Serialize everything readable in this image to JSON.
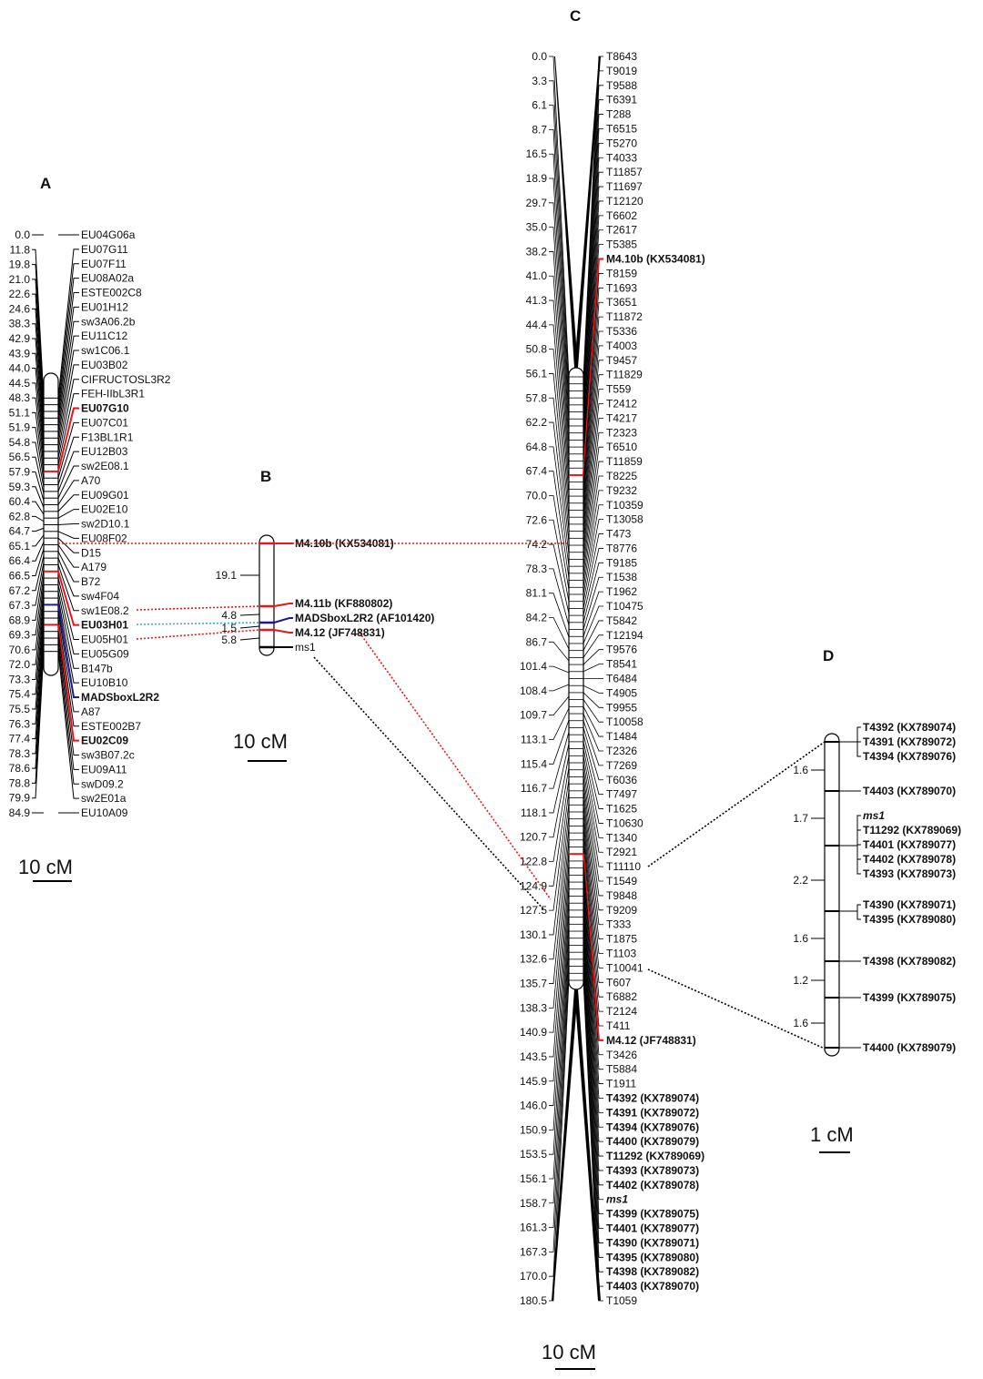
{
  "panels": {
    "A": "A",
    "B": "B",
    "C": "C",
    "D": "D"
  },
  "colors": {
    "red": "#e8161b",
    "blue": "#1c1a8c",
    "black": "#000000",
    "link_blue": "#4aa6d9"
  },
  "scale_labels": {
    "a": "10 cM",
    "b": "10 cM",
    "c": "10 cM",
    "d": "1 cM"
  },
  "lg_a": {
    "positions": [
      "0.0",
      "11.8",
      "19.8",
      "21.0",
      "22.6",
      "24.6",
      "38.3",
      "42.9",
      "43.9",
      "44.0",
      "44.5",
      "48.3",
      "51.1",
      "51.9",
      "54.8",
      "56.5",
      "57.9",
      "59.3",
      "60.4",
      "62.8",
      "64.7",
      "65.1",
      "66.4",
      "66.5",
      "67.2",
      "67.3",
      "68.9",
      "69.3",
      "70.6",
      "72.0",
      "73.3",
      "75.4",
      "75.5",
      "76.3",
      "77.4",
      "78.3",
      "78.6",
      "78.8",
      "79.9",
      "84.9"
    ],
    "markers": [
      {
        "text": "EU04G06a",
        "color": "black"
      },
      {
        "text": "EU07G11",
        "color": "black"
      },
      {
        "text": "EU07F11",
        "color": "black"
      },
      {
        "text": "EU08A02a",
        "color": "black"
      },
      {
        "text": "ESTE002C8",
        "color": "black"
      },
      {
        "text": "EU01H12",
        "color": "black"
      },
      {
        "text": "sw3A06.2b",
        "color": "black"
      },
      {
        "text": "EU11C12",
        "color": "black"
      },
      {
        "text": "sw1C06.1",
        "color": "black"
      },
      {
        "text": "EU03B02",
        "color": "black"
      },
      {
        "text": "CIFRUCTOSL3R2",
        "color": "black"
      },
      {
        "text": "FEH-IIbL3R1",
        "color": "black"
      },
      {
        "text": "EU07G10",
        "color": "red"
      },
      {
        "text": "EU07C01",
        "color": "black"
      },
      {
        "text": "F13BL1R1",
        "color": "black"
      },
      {
        "text": "EU12B03",
        "color": "black"
      },
      {
        "text": "sw2E08.1",
        "color": "black"
      },
      {
        "text": "A70",
        "color": "black"
      },
      {
        "text": "EU09G01",
        "color": "black"
      },
      {
        "text": "EU02E10",
        "color": "black"
      },
      {
        "text": "sw2D10.1",
        "color": "black"
      },
      {
        "text": "EU08F02",
        "color": "black"
      },
      {
        "text": "D15",
        "color": "black"
      },
      {
        "text": "A179",
        "color": "black"
      },
      {
        "text": "B72",
        "color": "black"
      },
      {
        "text": "sw4F04",
        "color": "black"
      },
      {
        "text": "sw1E08.2",
        "color": "black"
      },
      {
        "text": "EU03H01",
        "color": "red"
      },
      {
        "text": "EU05H01",
        "color": "black"
      },
      {
        "text": "EU05G09",
        "color": "black"
      },
      {
        "text": "B147b",
        "color": "black"
      },
      {
        "text": "EU10B10",
        "color": "black"
      },
      {
        "text": "MADSboxL2R2",
        "color": "blue"
      },
      {
        "text": "A87",
        "color": "black"
      },
      {
        "text": "ESTE002B7",
        "color": "black"
      },
      {
        "text": "EU02C09",
        "color": "red"
      },
      {
        "text": "sw3B07.2c",
        "color": "black"
      },
      {
        "text": "EU09A11",
        "color": "black"
      },
      {
        "text": "swD09.2",
        "color": "black"
      },
      {
        "text": "sw2E01a",
        "color": "black"
      },
      {
        "text": "EU10A09",
        "color": "black"
      }
    ]
  },
  "lg_b": {
    "positions": [
      "19.1",
      "4.8",
      "1.5",
      "5.8"
    ],
    "markers": [
      {
        "text": "M4.10b  (KX534081)",
        "color": "red"
      },
      {
        "text": "M4.11b  (KF880802)",
        "color": "red"
      },
      {
        "text": "MADSboxL2R2  (AF101420)",
        "color": "blue"
      },
      {
        "text": "M4.12  (JF748831)",
        "color": "red"
      },
      {
        "text": "ms1",
        "color": "black"
      }
    ]
  },
  "lg_c": {
    "positions": [
      "0.0",
      "3.3",
      "6.1",
      "8.7",
      "16.5",
      "18.9",
      "29.7",
      "35.0",
      "38.2",
      "41.0",
      "41.3",
      "44.4",
      "50.8",
      "56.1",
      "57.8",
      "62.2",
      "64.8",
      "67.4",
      "70.0",
      "72.6",
      "74.2",
      "78.3",
      "81.1",
      "84.2",
      "86.7",
      "101.4",
      "108.4",
      "109.7",
      "113.1",
      "115.4",
      "116.7",
      "118.1",
      "120.7",
      "122.8",
      "124.9",
      "127.5",
      "130.1",
      "132.6",
      "135.7",
      "138.3",
      "140.9",
      "143.5",
      "145.9",
      "146.0",
      "150.9",
      "153.5",
      "156.1",
      "158.7",
      "161.3",
      "167.3",
      "170.0",
      "180.5"
    ],
    "markers": [
      {
        "text": "T8643",
        "color": "black"
      },
      {
        "text": "T9019",
        "color": "black"
      },
      {
        "text": "T9588",
        "color": "black"
      },
      {
        "text": "T6391",
        "color": "black"
      },
      {
        "text": "T288",
        "color": "black"
      },
      {
        "text": "T6515",
        "color": "black"
      },
      {
        "text": "T5270",
        "color": "black"
      },
      {
        "text": "T4033",
        "color": "black"
      },
      {
        "text": "T11857",
        "color": "black"
      },
      {
        "text": "T11697",
        "color": "black"
      },
      {
        "text": "T12120",
        "color": "black"
      },
      {
        "text": "T6602",
        "color": "black"
      },
      {
        "text": "T2617",
        "color": "black"
      },
      {
        "text": "T5385",
        "color": "black"
      },
      {
        "text": "M4.10b  (KX534081)",
        "color": "red"
      },
      {
        "text": "T8159",
        "color": "black"
      },
      {
        "text": "T1693",
        "color": "black"
      },
      {
        "text": "T3651",
        "color": "black"
      },
      {
        "text": "T11872",
        "color": "black"
      },
      {
        "text": "T5336",
        "color": "black"
      },
      {
        "text": "T4003",
        "color": "black"
      },
      {
        "text": "T9457",
        "color": "black"
      },
      {
        "text": "T11829",
        "color": "black"
      },
      {
        "text": "T559",
        "color": "black"
      },
      {
        "text": "T2412",
        "color": "black"
      },
      {
        "text": "T4217",
        "color": "black"
      },
      {
        "text": "T2323",
        "color": "black"
      },
      {
        "text": "T6510",
        "color": "black"
      },
      {
        "text": "T11859",
        "color": "black"
      },
      {
        "text": "T8225",
        "color": "black"
      },
      {
        "text": "T9232",
        "color": "black"
      },
      {
        "text": "T10359",
        "color": "black"
      },
      {
        "text": "T13058",
        "color": "black"
      },
      {
        "text": "T473",
        "color": "black"
      },
      {
        "text": "T8776",
        "color": "black"
      },
      {
        "text": "T9185",
        "color": "black"
      },
      {
        "text": "T1538",
        "color": "black"
      },
      {
        "text": "T1962",
        "color": "black"
      },
      {
        "text": "T10475",
        "color": "black"
      },
      {
        "text": "T5842",
        "color": "black"
      },
      {
        "text": "T12194",
        "color": "black"
      },
      {
        "text": "T9576",
        "color": "black"
      },
      {
        "text": "T8541",
        "color": "black"
      },
      {
        "text": "T6484",
        "color": "black"
      },
      {
        "text": "T4905",
        "color": "black"
      },
      {
        "text": "T9955",
        "color": "black"
      },
      {
        "text": "T10058",
        "color": "black"
      },
      {
        "text": "T1484",
        "color": "black"
      },
      {
        "text": "T2326",
        "color": "black"
      },
      {
        "text": "T7269",
        "color": "black"
      },
      {
        "text": "T6036",
        "color": "black"
      },
      {
        "text": "T7497",
        "color": "black"
      },
      {
        "text": "T1625",
        "color": "black"
      },
      {
        "text": "T10630",
        "color": "black"
      },
      {
        "text": "T1340",
        "color": "black"
      },
      {
        "text": "T2921",
        "color": "black"
      },
      {
        "text": "T11110",
        "color": "black"
      },
      {
        "text": "T1549",
        "color": "black"
      },
      {
        "text": "T9848",
        "color": "black"
      },
      {
        "text": "T9209",
        "color": "black"
      },
      {
        "text": "T333",
        "color": "black"
      },
      {
        "text": "T1875",
        "color": "black"
      },
      {
        "text": "T1103",
        "color": "black"
      },
      {
        "text": "T10041",
        "color": "black"
      },
      {
        "text": "T607",
        "color": "black"
      },
      {
        "text": "T6882",
        "color": "black"
      },
      {
        "text": "T2124",
        "color": "black"
      },
      {
        "text": "T411",
        "color": "black"
      },
      {
        "text": "M4.12  (JF748831)",
        "color": "red"
      },
      {
        "text": "T3426",
        "color": "black"
      },
      {
        "text": "T5884",
        "color": "black"
      },
      {
        "text": "T1911",
        "color": "black"
      },
      {
        "text": "T4392  (KX789074)",
        "color": "bold"
      },
      {
        "text": "T4391  (KX789072)",
        "color": "bold"
      },
      {
        "text": "T4394  (KX789076)",
        "color": "bold"
      },
      {
        "text": "T4400  (KX789079)",
        "color": "bold"
      },
      {
        "text": "T11292  (KX789069)",
        "color": "bold"
      },
      {
        "text": "T4393  (KX789073)",
        "color": "bold"
      },
      {
        "text": "T4402  (KX789078)",
        "color": "bold"
      },
      {
        "text": "ms1",
        "color": "italic"
      },
      {
        "text": "T4399  (KX789075)",
        "color": "bold"
      },
      {
        "text": "T4401  (KX789077)",
        "color": "bold"
      },
      {
        "text": "T4390  (KX789071)",
        "color": "bold"
      },
      {
        "text": "T4395  (KX789080)",
        "color": "bold"
      },
      {
        "text": "T4398  (KX789082)",
        "color": "bold"
      },
      {
        "text": "T4403  (KX789070)",
        "color": "bold"
      },
      {
        "text": "T1059",
        "color": "black"
      }
    ]
  },
  "lg_d": {
    "positions": [
      "1.6",
      "1.7",
      "2.2",
      "1.6",
      "1.2",
      "1.6"
    ],
    "markers": [
      {
        "text": "T4392  (KX789074)",
        "color": "bold"
      },
      {
        "text": "T4391  (KX789072)",
        "color": "bold"
      },
      {
        "text": "T4394  (KX789076)",
        "color": "bold"
      },
      {
        "text": "T4403  (KX789070)",
        "color": "bold"
      },
      {
        "text": "ms1",
        "color": "italic"
      },
      {
        "text": "T11292  (KX789069)",
        "color": "bold"
      },
      {
        "text": "T4401  (KX789077)",
        "color": "bold"
      },
      {
        "text": "T4402  (KX789078)",
        "color": "bold"
      },
      {
        "text": "T4393  (KX789073)",
        "color": "bold"
      },
      {
        "text": "T4390  (KX789071)",
        "color": "bold"
      },
      {
        "text": "T4395  (KX789080)",
        "color": "bold"
      },
      {
        "text": "T4398  (KX789082)",
        "color": "bold"
      },
      {
        "text": "T4399  (KX789075)",
        "color": "bold"
      },
      {
        "text": "T4400  (KX789079)",
        "color": "bold"
      }
    ]
  }
}
